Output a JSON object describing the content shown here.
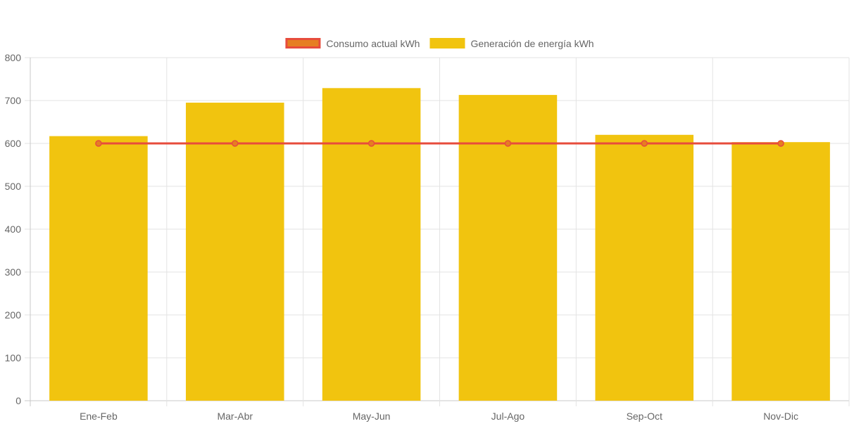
{
  "chart_data": {
    "type": "bar",
    "categories": [
      "Ene-Feb",
      "Mar-Abr",
      "May-Jun",
      "Jul-Ago",
      "Sep-Oct",
      "Nov-Dic"
    ],
    "series": [
      {
        "name": "Consumo actual kWh",
        "type": "line",
        "values": [
          600,
          600,
          600,
          600,
          600,
          600
        ],
        "color": "#e74c3c",
        "point_color": "#e67e22"
      },
      {
        "name": "Generación de energía kWh",
        "type": "bar",
        "values": [
          617,
          695,
          729,
          713,
          620,
          603
        ],
        "color": "#f1c40f"
      }
    ],
    "ylim": [
      0,
      800
    ],
    "yticks": [
      0,
      100,
      200,
      300,
      400,
      500,
      600,
      700,
      800
    ],
    "grid": true,
    "legend_position": "top-center",
    "title": "",
    "xlabel": "",
    "ylabel": ""
  }
}
